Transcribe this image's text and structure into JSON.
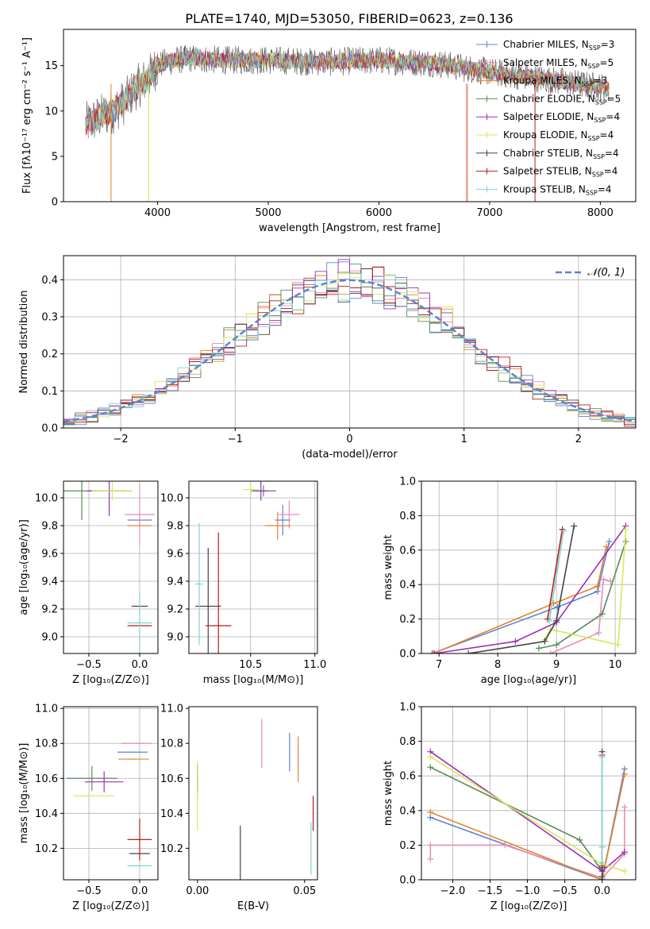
{
  "figure": {
    "title": "PLATE=1740, MJD=53050, FIBERID=0623, z=0.136"
  },
  "legend_models": [
    {
      "label": "Chabrier MILES, N",
      "sub": "SSP",
      "suffix": "=3",
      "color": "#5b84cf"
    },
    {
      "label": "Salpeter MILES, N",
      "sub": "SSP",
      "suffix": "=5",
      "color": "#e88bb7"
    },
    {
      "label": "Kroupa MILES, N",
      "sub": "SSP",
      "suffix": "=3",
      "color": "#e5822d"
    },
    {
      "label": "Chabrier ELODIE, N",
      "sub": "SSP",
      "suffix": "=5",
      "color": "#5a8a5a"
    },
    {
      "label": "Salpeter ELODIE, N",
      "sub": "SSP",
      "suffix": "=4",
      "color": "#9b30b8"
    },
    {
      "label": "Kroupa ELODIE, N",
      "sub": "SSP",
      "suffix": "=4",
      "color": "#d6e85a"
    },
    {
      "label": "Chabrier STELIB, N",
      "sub": "SSP",
      "suffix": "=4",
      "color": "#444444"
    },
    {
      "label": "Salpeter STELIB, N",
      "sub": "SSP",
      "suffix": "=4",
      "color": "#b81c1c"
    },
    {
      "label": "Kroupa STELIB, N",
      "sub": "SSP",
      "suffix": "=4",
      "color": "#7dd4d4"
    }
  ],
  "chart_data": [
    {
      "id": "spectrum",
      "type": "line",
      "xlabel": "wavelength [Angstrom, rest frame]",
      "ylabel": "Flux [fλ10⁻¹⁷ erg cm⁻² s⁻¹ A⁻¹]",
      "xlim": [
        3150,
        8320
      ],
      "ylim": [
        0,
        19
      ],
      "xticks": [
        4000,
        5000,
        6000,
        7000,
        8000
      ],
      "yticks": [
        0,
        5,
        10,
        15
      ],
      "x_range_data": [
        3350,
        8080
      ],
      "continuum": {
        "x": [
          3350,
          3500,
          3600,
          3700,
          3800,
          3900,
          4000,
          4100,
          4300,
          4600,
          5000,
          5500,
          6000,
          6500,
          7000,
          7500,
          8080
        ],
        "y": [
          8.5,
          9.5,
          10,
          11,
          12.5,
          13.5,
          15,
          15.5,
          15.8,
          15.6,
          15.6,
          15.4,
          15.6,
          15.3,
          14.3,
          13.5,
          12.5
        ]
      },
      "grid": false
    },
    {
      "id": "residual-histogram",
      "type": "line",
      "xlabel": "(data-model)/error",
      "ylabel": "Normed distribution",
      "xlim": [
        -2.5,
        2.5
      ],
      "ylim": [
        0,
        0.465
      ],
      "xticks": [
        -2,
        -1,
        0,
        1,
        2
      ],
      "yticks": [
        0.0,
        0.1,
        0.2,
        0.3,
        0.4
      ],
      "legend": "$\\mathcal{N}(0,1)$",
      "legend_text": "𝒩(0, 1)",
      "gaussian": {
        "mu": 0,
        "sigma": 1
      },
      "bin_width": 0.1,
      "grid": true
    },
    {
      "id": "age-vs-Z",
      "type": "scatter",
      "xlabel": "Z [log₁₀(Z/Z⊙)]",
      "ylabel": "age  [log₁₀(age/yr)]",
      "xlim": [
        -0.75,
        0.18
      ],
      "ylim": [
        8.88,
        10.12
      ],
      "xticks": [
        -0.5,
        0.0
      ],
      "yticks": [
        9.0,
        9.2,
        9.4,
        9.6,
        9.8,
        10.0
      ],
      "points": [
        {
          "x": 0.0,
          "y": 9.84,
          "xerr": 0.12,
          "yerr": 0.0
        },
        {
          "x": 0.0,
          "y": 9.88,
          "xerr": 0.15,
          "yerr": 0.22
        },
        {
          "x": 0.0,
          "y": 9.8,
          "xerr": 0.12,
          "yerr": 0.0
        },
        {
          "x": -0.57,
          "y": 10.05,
          "xerr": 0.18,
          "yerr": 0.21
        },
        {
          "x": -0.3,
          "y": 10.05,
          "xerr": 0.22,
          "yerr": 0.18
        },
        {
          "x": -0.27,
          "y": 10.05,
          "xerr": 0.2,
          "yerr": 0.07
        },
        {
          "x": 0.0,
          "y": 9.22,
          "xerr": 0.08,
          "yerr": 0.0
        },
        {
          "x": 0.0,
          "y": 9.08,
          "xerr": 0.12,
          "yerr": 0.0
        },
        {
          "x": 0.0,
          "y": 9.1,
          "xerr": 0.12,
          "yerr": 0.22
        }
      ],
      "grid": true
    },
    {
      "id": "age-vs-mass",
      "type": "scatter",
      "xlabel": "mass [log₁₀(M/M⊙)]",
      "ylabel": "",
      "xlim": [
        10.02,
        11.02
      ],
      "ylim": [
        8.88,
        10.12
      ],
      "xticks": [
        10.5,
        11.0
      ],
      "yticks": [
        9.0,
        9.2,
        9.4,
        9.6,
        9.8,
        10.0
      ],
      "points": [
        {
          "x": 10.75,
          "y": 9.84,
          "xerr": 0.06,
          "yerr": 0.11
        },
        {
          "x": 10.8,
          "y": 9.88,
          "xerr": 0.08,
          "yerr": 0.1
        },
        {
          "x": 10.71,
          "y": 9.8,
          "xerr": 0.1,
          "yerr": 0.1
        },
        {
          "x": 10.6,
          "y": 10.05,
          "xerr": 0.1,
          "yerr": 0.04
        },
        {
          "x": 10.58,
          "y": 10.05,
          "xerr": 0.06,
          "yerr": 0.07
        },
        {
          "x": 10.5,
          "y": 10.06,
          "xerr": 0.06,
          "yerr": 0.04
        },
        {
          "x": 10.17,
          "y": 9.22,
          "xerr": 0.1,
          "yerr": 0.42
        },
        {
          "x": 10.25,
          "y": 9.08,
          "xerr": 0.1,
          "yerr": 0.67
        },
        {
          "x": 10.1,
          "y": 9.38,
          "xerr": 0.03,
          "yerr": 0.44
        }
      ],
      "grid": true
    },
    {
      "id": "massweight-vs-age",
      "type": "line",
      "xlabel": "age  [log₁₀(age/yr)]",
      "ylabel": "mass weight",
      "xlim": [
        6.7,
        10.35
      ],
      "ylim": [
        0,
        1.0
      ],
      "xticks": [
        7,
        8,
        9,
        10
      ],
      "yticks": [
        0.0,
        0.2,
        0.4,
        0.6,
        0.8,
        1.0
      ],
      "series": [
        {
          "x": [
            6.88,
            9.02,
            9.7,
            9.9
          ],
          "y": [
            0.0,
            0.27,
            0.36,
            0.65
          ]
        },
        {
          "x": [
            8.9,
            9.72,
            9.8,
            9.92
          ],
          "y": [
            0.0,
            0.12,
            0.43,
            0.42
          ]
        },
        {
          "x": [
            6.9,
            8.95,
            9.7,
            9.85
          ],
          "y": [
            0.0,
            0.29,
            0.39,
            0.62
          ]
        },
        {
          "x": [
            8.7,
            9.0,
            9.78,
            10.18
          ],
          "y": [
            0.03,
            0.05,
            0.23,
            0.65
          ]
        },
        {
          "x": [
            6.92,
            8.3,
            9.0,
            10.18
          ],
          "y": [
            0.0,
            0.07,
            0.18,
            0.74
          ]
        },
        {
          "x": [
            8.8,
            8.9,
            10.05,
            10.18
          ],
          "y": [
            0.08,
            0.14,
            0.05,
            0.72
          ]
        },
        {
          "x": [
            7.5,
            8.8,
            9.0,
            9.3
          ],
          "y": [
            0.0,
            0.07,
            0.19,
            0.74
          ]
        },
        {
          "x": [
            8.85,
            9.1
          ],
          "y": [
            0.2,
            0.72
          ]
        },
        {
          "x": [
            8.88,
            9.12
          ],
          "y": [
            0.19,
            0.71
          ]
        }
      ],
      "grid": true
    },
    {
      "id": "mass-vs-Z",
      "type": "scatter",
      "xlabel": "Z [log₁₀(Z/Z⊙)]",
      "ylabel": "mass [log₁₀(M/M⊙)]",
      "xlim": [
        -0.75,
        0.18
      ],
      "ylim": [
        10.02,
        11.01
      ],
      "xticks": [
        -0.5,
        0.0
      ],
      "yticks": [
        10.2,
        10.4,
        10.6,
        10.8,
        11.0
      ],
      "points": [
        {
          "x": -0.07,
          "y": 10.75,
          "xerr": 0.15,
          "yerr": 0.0
        },
        {
          "x": -0.03,
          "y": 10.8,
          "xerr": 0.15,
          "yerr": 0.0
        },
        {
          "x": -0.06,
          "y": 10.71,
          "xerr": 0.15,
          "yerr": 0.0
        },
        {
          "x": -0.47,
          "y": 10.6,
          "xerr": 0.25,
          "yerr": 0.07
        },
        {
          "x": -0.35,
          "y": 10.58,
          "xerr": 0.19,
          "yerr": 0.06
        },
        {
          "x": -0.45,
          "y": 10.5,
          "xerr": 0.2,
          "yerr": 0.0
        },
        {
          "x": 0.0,
          "y": 10.17,
          "xerr": 0.1,
          "yerr": 0.0
        },
        {
          "x": 0.0,
          "y": 10.25,
          "xerr": 0.12,
          "yerr": 0.12
        },
        {
          "x": 0.0,
          "y": 10.1,
          "xerr": 0.12,
          "yerr": 0.0
        }
      ],
      "grid": true
    },
    {
      "id": "mass-vs-EBV",
      "type": "scatter",
      "xlabel": "E(B-V)",
      "ylabel": "",
      "xlim": [
        -0.004,
        0.056
      ],
      "ylim": [
        10.02,
        11.01
      ],
      "xticks": [
        0.0,
        0.05
      ],
      "yticks": [
        10.2,
        10.4,
        10.6,
        10.8,
        11.0
      ],
      "points": [
        {
          "x": 0.043,
          "y": 10.75,
          "xerr": 0.0,
          "yerr": 0.11
        },
        {
          "x": 0.03,
          "y": 10.8,
          "xerr": 0.0,
          "yerr": 0.14
        },
        {
          "x": 0.047,
          "y": 10.71,
          "xerr": 0.0,
          "yerr": 0.13
        },
        {
          "x": 0.0,
          "y": 10.6,
          "xerr": 0.0,
          "yerr": 0.08
        },
        {
          "x": 0.0,
          "y": 10.58,
          "xerr": 0.0,
          "yerr": 0.06
        },
        {
          "x": 0.0,
          "y": 10.5,
          "xerr": 0.0,
          "yerr": 0.2
        },
        {
          "x": 0.02,
          "y": 10.17,
          "xerr": 0.0,
          "yerr": 0.16
        },
        {
          "x": 0.054,
          "y": 10.4,
          "xerr": 0.0,
          "yerr": 0.1
        },
        {
          "x": 0.053,
          "y": 10.2,
          "xerr": 0.0,
          "yerr": 0.15
        }
      ],
      "grid": false
    },
    {
      "id": "massweight-vs-Z",
      "type": "line",
      "xlabel": "Z [log₁₀(Z/Z⊙)]",
      "ylabel": "mass weight",
      "xlim": [
        -2.42,
        0.45
      ],
      "ylim": [
        0,
        1.0
      ],
      "xticks": [
        -2.0,
        -1.5,
        -1.0,
        -0.5,
        0.0
      ],
      "yticks": [
        0.0,
        0.2,
        0.4,
        0.6,
        0.8,
        1.0
      ],
      "series": [
        {
          "x": [
            -2.3,
            0.0,
            0.3
          ],
          "y": [
            0.36,
            0.0,
            0.64
          ]
        },
        {
          "x": [
            -2.3,
            -2.3,
            -1.3,
            0.0,
            0.3,
            0.3
          ],
          "y": [
            0.12,
            0.2,
            0.2,
            0.01,
            0.15,
            0.42
          ]
        },
        {
          "x": [
            -2.3,
            0.0,
            0.3
          ],
          "y": [
            0.39,
            0.0,
            0.61
          ]
        },
        {
          "x": [
            -2.3,
            -0.3,
            0.0,
            0.0,
            0.0
          ],
          "y": [
            0.65,
            0.23,
            0.05,
            0.02,
            0.02
          ]
        },
        {
          "x": [
            -2.3,
            0.0,
            0.3
          ],
          "y": [
            0.74,
            0.05,
            0.16
          ]
        },
        {
          "x": [
            -2.3,
            0.0,
            0.3
          ],
          "y": [
            0.71,
            0.09,
            0.05
          ]
        },
        {
          "x": [
            0.0,
            0.0,
            0.0,
            0.0
          ],
          "y": [
            0.0,
            0.07,
            0.19,
            0.74
          ]
        },
        {
          "x": [
            0.0,
            0.0
          ],
          "y": [
            0.08,
            0.72
          ]
        },
        {
          "x": [
            0.0,
            0.0,
            0.0
          ],
          "y": [
            0.1,
            0.19,
            0.71
          ]
        }
      ],
      "grid": true
    }
  ]
}
